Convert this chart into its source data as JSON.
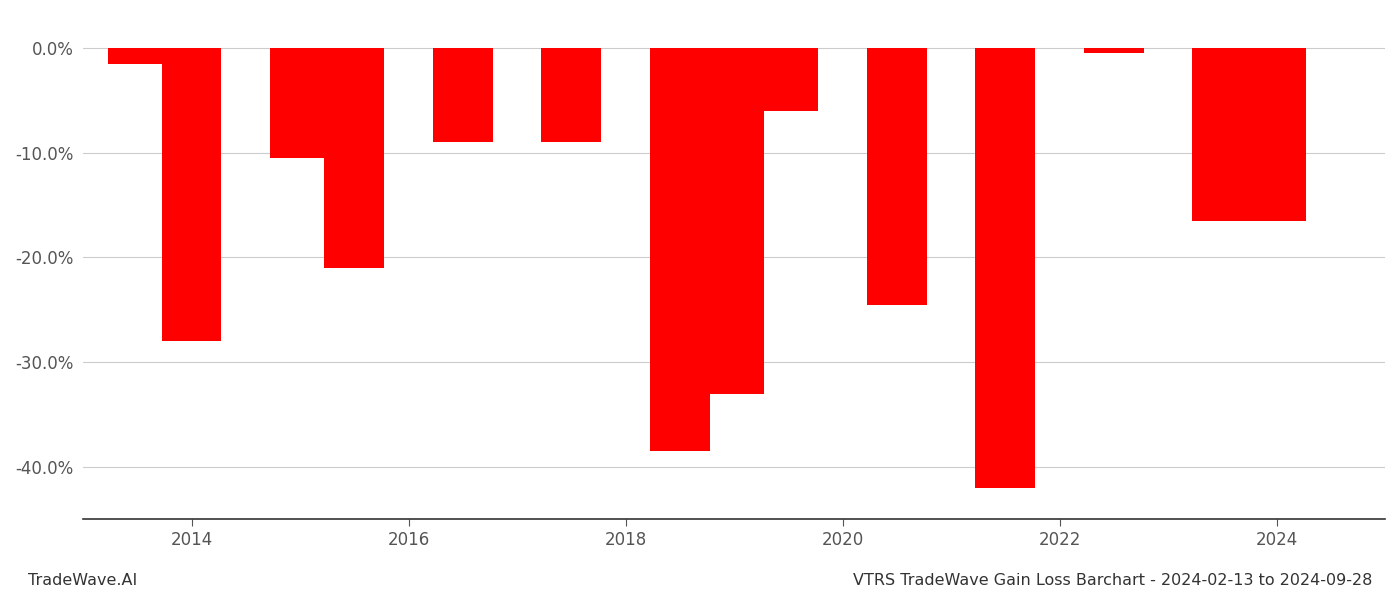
{
  "years": [
    2013.5,
    2014.0,
    2015.0,
    2015.5,
    2016.5,
    2017.5,
    2018.5,
    2019.0,
    2019.5,
    2020.5,
    2021.5,
    2022.5,
    2023.5,
    2024.0
  ],
  "values": [
    -1.5,
    -28.0,
    -10.5,
    -21.0,
    -9.0,
    -9.0,
    -38.5,
    -33.0,
    -6.0,
    -24.5,
    -42.0,
    -0.5,
    -16.5,
    -16.5
  ],
  "bar_color": "#ff0000",
  "title": "VTRS TradeWave Gain Loss Barchart - 2024-02-13 to 2024-09-28",
  "watermark": "TradeWave.AI",
  "xlim_left": 2013.0,
  "xlim_right": 2025.0,
  "ylim_bottom": -45,
  "ylim_top": 2,
  "yticks": [
    0,
    -10,
    -20,
    -30,
    -40
  ],
  "xticks": [
    2014,
    2016,
    2018,
    2020,
    2022,
    2024
  ],
  "background_color": "#ffffff",
  "grid_color": "#cccccc",
  "axis_color": "#333333",
  "title_fontsize": 11.5,
  "watermark_fontsize": 11.5,
  "tick_fontsize": 12
}
